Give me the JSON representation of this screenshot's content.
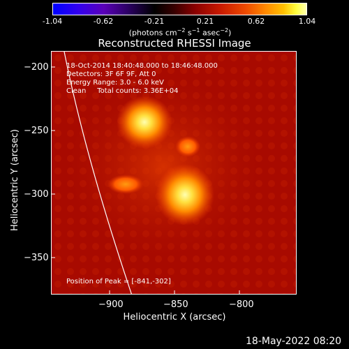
{
  "colorbar": {
    "ticks": [
      "-1.04",
      "-0.62",
      "-0.21",
      "0.21",
      "0.62",
      "1.04"
    ],
    "tick_values": [
      -1.04,
      -0.62,
      -0.21,
      0.21,
      0.62,
      1.04
    ],
    "unit_prefix": "(photons cm",
    "unit_exp1": "−2",
    "unit_mid": " s",
    "unit_exp2": "−1",
    "unit_mid2": " asec",
    "unit_exp3": "−2",
    "unit_suffix": ")"
  },
  "plot": {
    "title": "Reconstructed RHESSI Image",
    "info_line1": "18-Oct-2014 18:40:48.000 to 18:46:48.000",
    "info_line2": "Detectors: 3F 6F 9F, Att 0",
    "info_line3": "Energy Range: 3.0 - 6.0 keV",
    "info_line4": "Clean     Total counts: 3.36E+04",
    "peak": "Position of Peak = [-841,-302]",
    "xlabel": "Heliocentric X (arcsec)",
    "ylabel": "Heliocentric Y (arcsec)",
    "xticks": [
      "−900",
      "−850",
      "−800"
    ],
    "xtick_values": [
      -900,
      -850,
      -800
    ],
    "yticks": [
      "−200",
      "−250",
      "−300",
      "−350"
    ],
    "ytick_values": [
      -200,
      -250,
      -300,
      -350
    ],
    "x_range": [
      -944,
      -796
    ],
    "y_range": [
      -380,
      -191
    ],
    "colors": {
      "background": "#000000",
      "map_base": "#a80a00",
      "hot": "#ffff80",
      "limb": "#ffffff"
    }
  },
  "footer": {
    "timestamp": "18-May-2022 08:20"
  }
}
